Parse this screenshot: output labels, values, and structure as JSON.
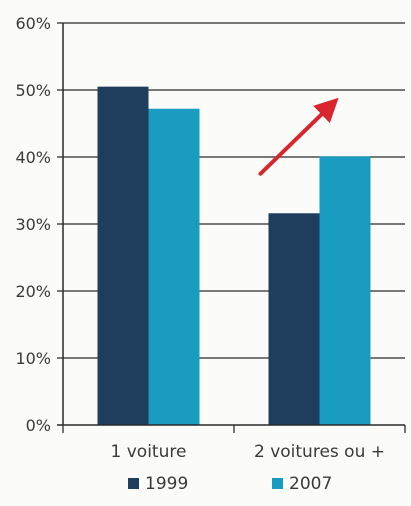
{
  "chart_data": {
    "type": "bar",
    "categories": [
      "1 voiture",
      "2 voitures ou +"
    ],
    "series": [
      {
        "name": "1999",
        "values": [
          50.5,
          31.6
        ],
        "color": "#1f3d5c"
      },
      {
        "name": "2007",
        "values": [
          47.2,
          40.1
        ],
        "color": "#1a9bc0"
      }
    ],
    "y_ticks": [
      "0%",
      "10%",
      "20%",
      "30%",
      "40%",
      "50%",
      "60%"
    ],
    "y_tick_values": [
      0,
      10,
      20,
      30,
      40,
      50,
      60
    ],
    "ylim": [
      0,
      60
    ],
    "grid": true,
    "legend": "bottom",
    "annotation": {
      "kind": "arrow",
      "color": "#d9262e",
      "meaning": "increase"
    }
  }
}
